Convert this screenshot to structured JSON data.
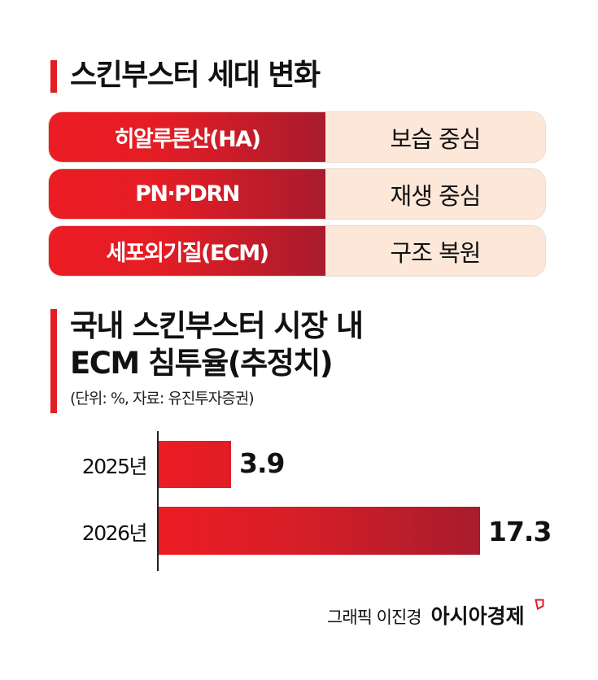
{
  "section1": {
    "title": "스킨부스터 세대 변화",
    "rows": [
      {
        "ingredient": "히알루론산(HA)",
        "focus": "보습 중심"
      },
      {
        "ingredient": "PN·PDRN",
        "focus": "재생 중심"
      },
      {
        "ingredient": "세포외기질(ECM)",
        "focus": "구조 복원"
      }
    ]
  },
  "section2": {
    "title_line1": "국내 스킨부스터 시장 내",
    "title_line2": "ECM 침투율(추정치)",
    "subtitle": "(단위: %, 자료: 유진투자증권)"
  },
  "chart_data": {
    "type": "bar",
    "orientation": "horizontal",
    "title": "국내 스킨부스터 시장 내 ECM 침투율(추정치)",
    "subtitle": "(단위: %, 자료: 유진투자증권)",
    "categories": [
      "2025년",
      "2026년"
    ],
    "values": [
      3.9,
      17.3
    ],
    "value_labels": [
      "3.9",
      "17.3"
    ],
    "unit": "%",
    "source": "유진투자증권",
    "xlabel": "",
    "ylabel": "",
    "grid": false,
    "legend": null
  },
  "colors": {
    "accent": "#e21d24",
    "gradient_start": "#ec1c24",
    "gradient_end": "#a81c2d",
    "peach": "#fde7d9"
  },
  "footer": {
    "credit": "그래픽 이진경",
    "brand": "아시아경제"
  }
}
